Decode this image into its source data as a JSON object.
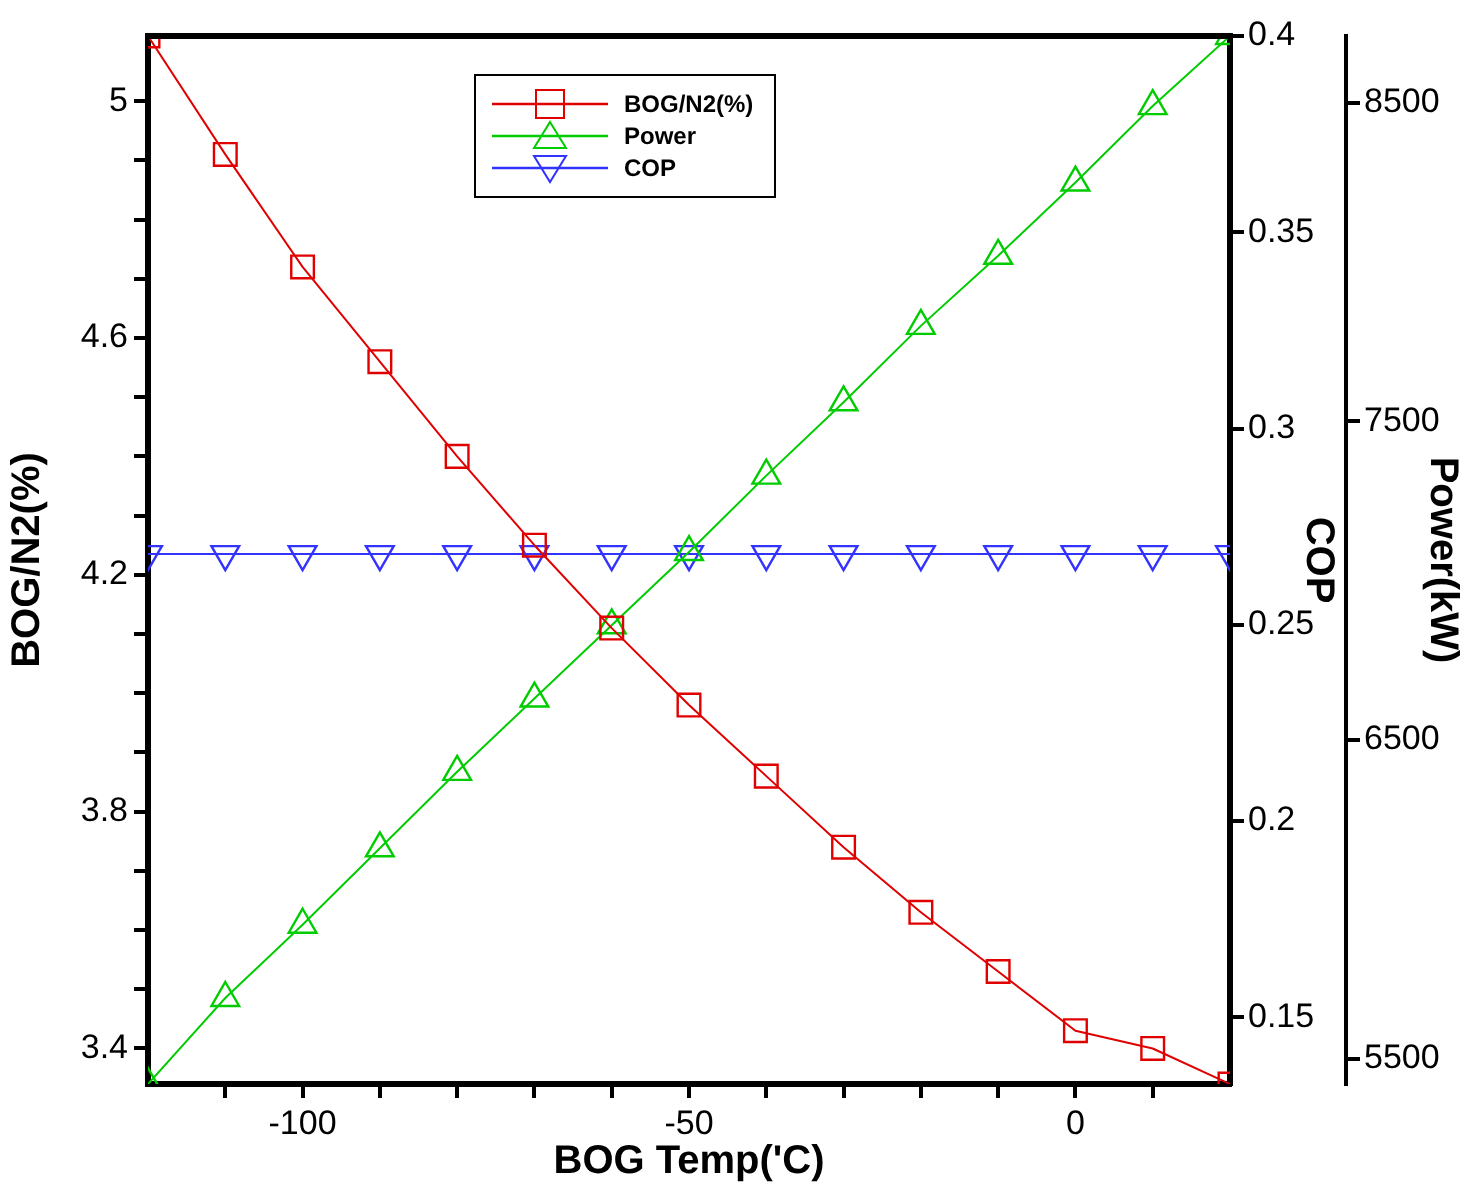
{
  "chart_data": {
    "type": "line",
    "xlabel": "BOG Temp('C)",
    "ylabel": "BOG/N2(%)",
    "y2label": "COP",
    "y3label": "Power(kW)",
    "x": [
      -120,
      -110,
      -100,
      -90,
      -80,
      -70,
      -60,
      -50,
      -40,
      -30,
      -20,
      -10,
      0,
      10,
      20
    ],
    "xlim": [
      -120,
      20
    ],
    "xticks": [
      {
        "value": -110,
        "label": null
      },
      -100,
      {
        "value": -90,
        "label": null
      },
      {
        "value": -80,
        "label": null
      },
      {
        "value": -70,
        "label": null
      },
      {
        "value": -60,
        "label": null
      },
      -50,
      {
        "value": -40,
        "label": null
      },
      {
        "value": -30,
        "label": null
      },
      {
        "value": -20,
        "label": null
      },
      {
        "value": -10,
        "label": null
      },
      0,
      {
        "value": 10,
        "label": null
      }
    ],
    "ylim": [
      3.34,
      5.11
    ],
    "yticks": [
      3.4,
      {
        "value": 3.5,
        "label": null
      },
      {
        "value": 3.6,
        "label": null
      },
      {
        "value": 3.7,
        "label": null
      },
      3.8,
      {
        "value": 3.9,
        "label": null
      },
      {
        "value": 4.0,
        "label": null
      },
      {
        "value": 4.1,
        "label": null
      },
      4.2,
      {
        "value": 4.3,
        "label": null
      },
      {
        "value": 4.4,
        "label": null
      },
      {
        "value": 4.5,
        "label": null
      },
      4.6,
      {
        "value": 4.7,
        "label": null
      },
      {
        "value": 4.8,
        "label": null
      },
      {
        "value": 4.9,
        "label": null
      },
      5
    ],
    "y2lim": [
      0.133,
      0.4
    ],
    "y2ticks": [
      0.15,
      0.2,
      0.25,
      0.3,
      0.35,
      0.4
    ],
    "y3lim": [
      5420,
      8710
    ],
    "y3ticks": [
      5500,
      6500,
      7500,
      8500
    ],
    "legend": "top",
    "series": [
      {
        "name": "BOG/N2(%)",
        "color": "#e00000",
        "marker": "square",
        "values": [
          5.11,
          4.91,
          4.72,
          4.56,
          4.4,
          4.25,
          4.11,
          3.98,
          3.86,
          3.74,
          3.63,
          3.53,
          3.43,
          3.4,
          3.34
        ]
      },
      {
        "name": "Power",
        "color": "#00cc00",
        "marker": "triangle",
        "axis": "y3",
        "values": [
          5420,
          5690,
          5920,
          6160,
          6400,
          6630,
          6860,
          7090,
          7330,
          7560,
          7800,
          8020,
          8250,
          8490,
          8710
        ]
      },
      {
        "name": "COP",
        "color": "#3333ff",
        "marker": "triangle-down",
        "axis": "y2",
        "values": [
          0.268,
          0.268,
          0.268,
          0.268,
          0.268,
          0.268,
          0.268,
          0.268,
          0.268,
          0.268,
          0.268,
          0.268,
          0.268,
          0.268,
          0.268
        ]
      }
    ]
  }
}
